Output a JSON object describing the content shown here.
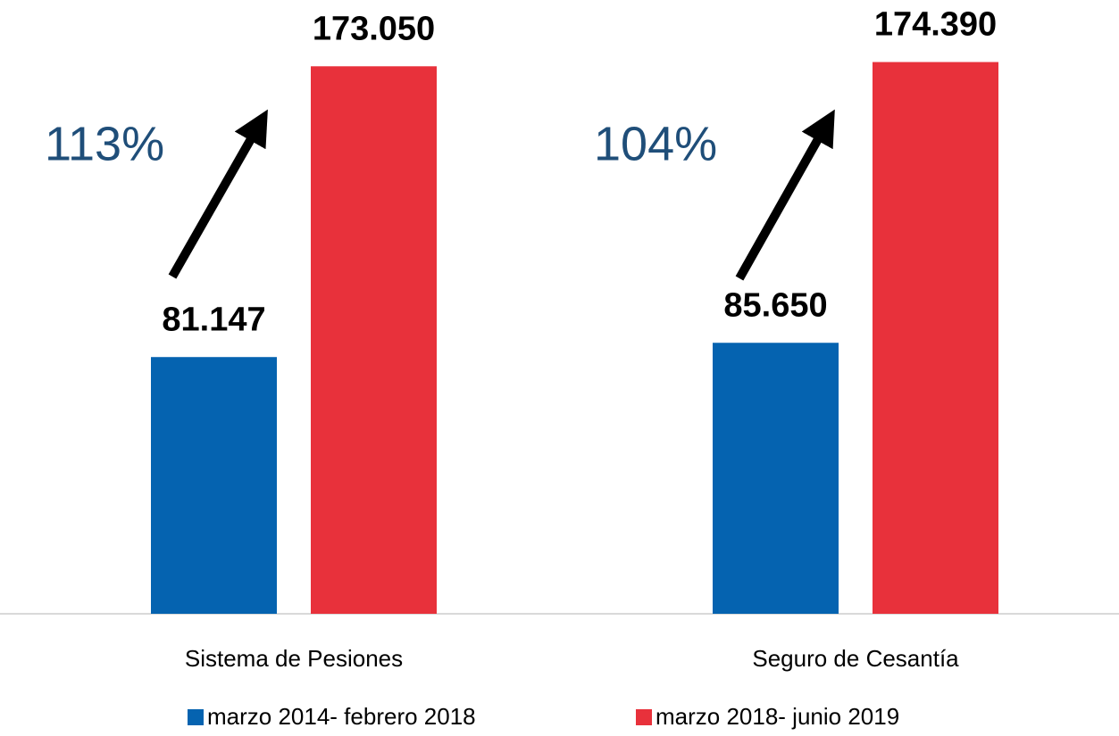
{
  "chart_data": {
    "type": "bar",
    "categories": [
      "Sistema de Pesiones",
      "Seguro de Cesantía"
    ],
    "series": [
      {
        "name": "marzo 2014- febrero 2018",
        "color": "#0563b0",
        "values": [
          81147,
          85650
        ],
        "value_labels": [
          "81.147",
          "85.650"
        ]
      },
      {
        "name": "marzo 2018- junio 2019",
        "color": "#e8313b",
        "values": [
          173050,
          174390
        ],
        "value_labels": [
          "173.050",
          "174.390"
        ]
      }
    ],
    "annotations": [
      {
        "text": "113%"
      },
      {
        "text": "104%"
      }
    ],
    "ylim": [
      0,
      194000
    ]
  }
}
